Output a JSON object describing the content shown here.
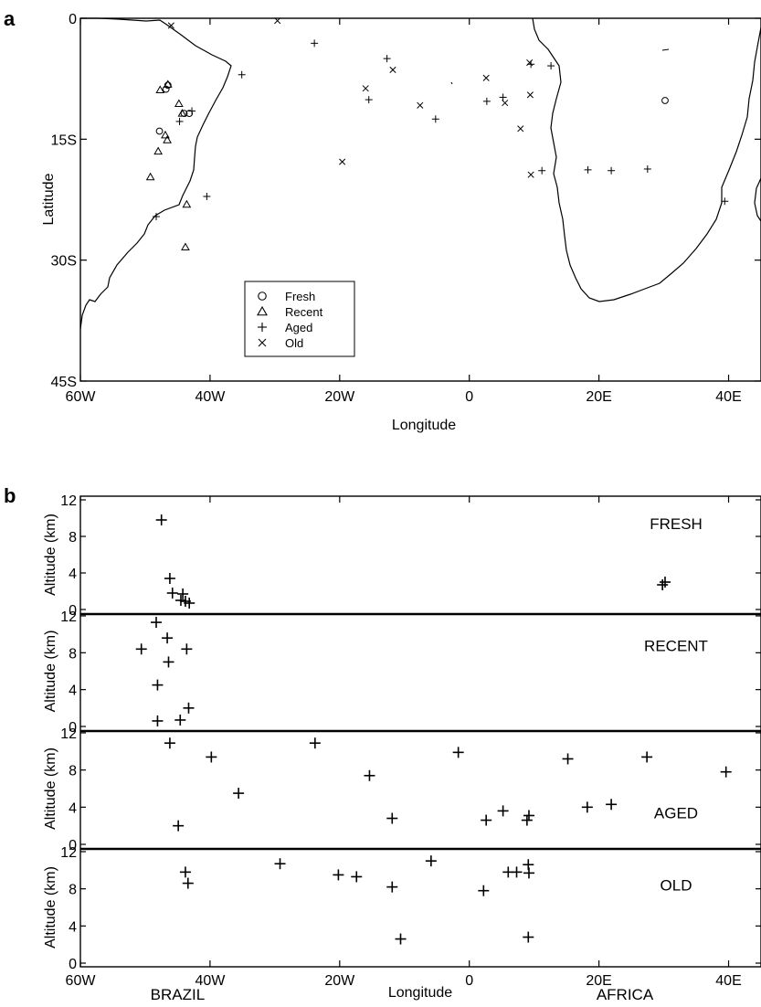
{
  "chart_data": [
    {
      "type": "scatter",
      "panel_label": "a",
      "xlabel": "Longitude",
      "ylabel": "Latitude",
      "xlim": [
        -60,
        45
      ],
      "ylim": [
        -45,
        0
      ],
      "x_ticks": [
        -60,
        -40,
        -20,
        0,
        20,
        40
      ],
      "x_tick_labels": [
        "60W",
        "40W",
        "20W",
        "0",
        "20E",
        "40E"
      ],
      "y_ticks": [
        0,
        -15,
        -30,
        -45
      ],
      "y_tick_labels": [
        "0",
        "15S",
        "30S",
        "45S"
      ],
      "legend_position": "bottom-center",
      "series": [
        {
          "name": "Fresh",
          "marker": "circle",
          "points": [
            [
              -46.5,
              -8.3
            ],
            [
              -46.8,
              -8.8
            ],
            [
              -44.0,
              -11.8
            ],
            [
              -43.2,
              -11.8
            ],
            [
              -47.8,
              -14.0
            ],
            [
              30.2,
              -10.2
            ]
          ]
        },
        {
          "name": "Recent",
          "marker": "triangle",
          "points": [
            [
              -47.7,
              -8.9
            ],
            [
              -46.5,
              -8.2
            ],
            [
              -44.8,
              -10.6
            ],
            [
              -44.3,
              -11.8
            ],
            [
              -46.9,
              -14.5
            ],
            [
              -46.6,
              -15.1
            ],
            [
              -48.0,
              -16.5
            ],
            [
              -49.2,
              -19.7
            ],
            [
              -43.6,
              -23.1
            ],
            [
              -43.8,
              -28.4
            ]
          ]
        },
        {
          "name": "Aged",
          "marker": "plus",
          "points": [
            [
              -35.1,
              -7.0
            ],
            [
              -42.8,
              -11.5
            ],
            [
              -44.7,
              -12.8
            ],
            [
              -48.3,
              -24.6
            ],
            [
              -40.5,
              -22.1
            ],
            [
              -23.9,
              -3.1
            ],
            [
              -12.7,
              -5.0
            ],
            [
              -15.5,
              -10.1
            ],
            [
              -5.2,
              -12.5
            ],
            [
              2.7,
              -10.3
            ],
            [
              5.2,
              -9.8
            ],
            [
              11.2,
              -18.9
            ],
            [
              18.3,
              -18.8
            ],
            [
              21.9,
              -18.9
            ],
            [
              27.5,
              -18.7
            ],
            [
              39.4,
              -22.7
            ],
            [
              9.5,
              -5.7
            ],
            [
              12.6,
              -5.9
            ]
          ]
        },
        {
          "name": "Old",
          "marker": "cross",
          "points": [
            [
              -46.0,
              -0.9
            ],
            [
              -29.6,
              -0.3
            ],
            [
              -16.0,
              -8.7
            ],
            [
              -11.8,
              -6.4
            ],
            [
              -7.6,
              -10.8
            ],
            [
              2.6,
              -7.4
            ],
            [
              5.5,
              -10.5
            ],
            [
              7.9,
              -13.7
            ],
            [
              9.3,
              -5.5
            ],
            [
              9.4,
              -9.5
            ],
            [
              9.5,
              -19.4
            ],
            [
              -19.6,
              -17.8
            ]
          ]
        }
      ]
    },
    {
      "type": "scatter",
      "panel_label": "b",
      "xlabel": "Longitude",
      "ylabel": "Altitude (km)",
      "xlim": [
        -60,
        45
      ],
      "ylim": [
        0,
        12
      ],
      "x_ticks": [
        -60,
        -40,
        -20,
        0,
        20,
        40
      ],
      "x_tick_labels": [
        "60W",
        "40W",
        "20W",
        "0",
        "20E",
        "40E"
      ],
      "y_ticks": [
        0,
        4,
        8,
        12
      ],
      "y_tick_labels": [
        "0",
        "4",
        "8",
        "12"
      ],
      "region_labels": [
        {
          "text": "BRAZIL",
          "x": -45
        },
        {
          "text": "AFRICA",
          "x": 24
        }
      ],
      "panels": [
        {
          "name": "FRESH",
          "points": [
            [
              -47.5,
              9.8
            ],
            [
              -46.2,
              3.4
            ],
            [
              -45.8,
              1.8
            ],
            [
              -44.2,
              1.7
            ],
            [
              -44.5,
              1.0
            ],
            [
              -43.8,
              0.9
            ],
            [
              -43.2,
              0.7
            ],
            [
              29.8,
              2.7
            ],
            [
              30.2,
              3.0
            ]
          ]
        },
        {
          "name": "RECENT",
          "points": [
            [
              -50.6,
              8.4
            ],
            [
              -48.3,
              11.3
            ],
            [
              -46.6,
              9.6
            ],
            [
              -43.6,
              8.4
            ],
            [
              -46.4,
              7.0
            ],
            [
              -48.1,
              4.5
            ],
            [
              -43.3,
              2.0
            ],
            [
              -48.1,
              0.6
            ],
            [
              -44.6,
              0.7
            ]
          ]
        },
        {
          "name": "AGED",
          "points": [
            [
              -46.2,
              10.9
            ],
            [
              -39.8,
              9.4
            ],
            [
              -23.8,
              10.9
            ],
            [
              -35.6,
              5.5
            ],
            [
              -44.9,
              2.0
            ],
            [
              -15.4,
              7.4
            ],
            [
              -11.9,
              2.8
            ],
            [
              -1.7,
              9.9
            ],
            [
              2.6,
              2.6
            ],
            [
              5.2,
              3.6
            ],
            [
              8.9,
              2.6
            ],
            [
              9.2,
              3.1
            ],
            [
              15.2,
              9.2
            ],
            [
              18.2,
              4.0
            ],
            [
              21.9,
              4.3
            ],
            [
              27.4,
              9.4
            ],
            [
              39.6,
              7.8
            ]
          ]
        },
        {
          "name": "OLD",
          "points": [
            [
              -43.8,
              9.8
            ],
            [
              -43.4,
              8.6
            ],
            [
              -29.2,
              10.7
            ],
            [
              -20.2,
              9.5
            ],
            [
              -17.4,
              9.3
            ],
            [
              -11.9,
              8.2
            ],
            [
              -10.6,
              2.6
            ],
            [
              -5.9,
              11.0
            ],
            [
              2.2,
              7.8
            ],
            [
              6.0,
              9.8
            ],
            [
              7.3,
              9.8
            ],
            [
              9.1,
              10.6
            ],
            [
              9.2,
              9.7
            ],
            [
              9.1,
              2.8
            ]
          ]
        }
      ]
    }
  ]
}
